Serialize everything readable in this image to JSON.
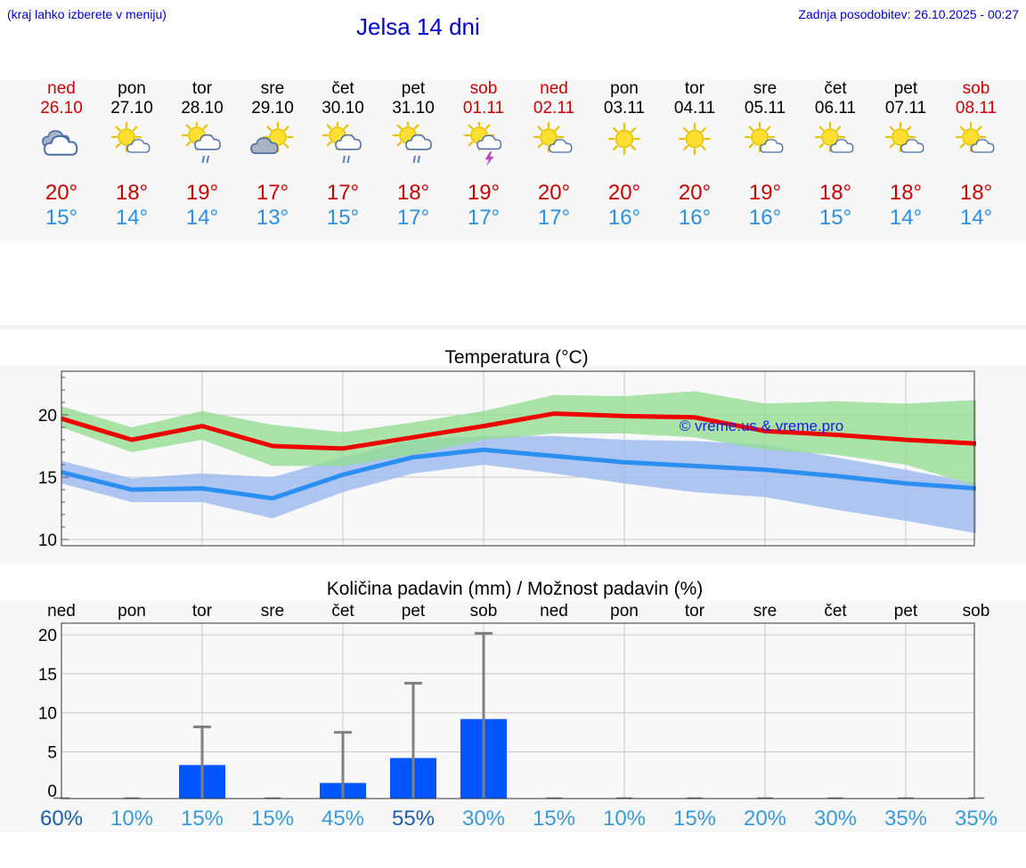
{
  "header": {
    "menu_hint": "(kraj lahko izberete v meniju)",
    "title": "Jelsa 14 dni",
    "last_update": "Zadnja posodobitev: 26.10.2025 - 00:27"
  },
  "days": [
    {
      "name": "ned",
      "date": "26.10",
      "weekend": true,
      "icon": "cloudy-icon",
      "tmax": "20°",
      "tmin": "15°"
    },
    {
      "name": "pon",
      "date": "27.10",
      "weekend": false,
      "icon": "sun-cloud-icon",
      "tmax": "18°",
      "tmin": "14°"
    },
    {
      "name": "tor",
      "date": "28.10",
      "weekend": false,
      "icon": "sun-cloud-rain-icon",
      "tmax": "19°",
      "tmin": "14°"
    },
    {
      "name": "sre",
      "date": "29.10",
      "weekend": false,
      "icon": "sun-dark-cloud-icon",
      "tmax": "17°",
      "tmin": "13°"
    },
    {
      "name": "čet",
      "date": "30.10",
      "weekend": false,
      "icon": "sun-cloud-rain-icon",
      "tmax": "17°",
      "tmin": "15°"
    },
    {
      "name": "pet",
      "date": "31.10",
      "weekend": false,
      "icon": "sun-cloud-rain-icon",
      "tmax": "18°",
      "tmin": "17°"
    },
    {
      "name": "sob",
      "date": "01.11",
      "weekend": true,
      "icon": "sun-cloud-thunder-icon",
      "tmax": "19°",
      "tmin": "17°"
    },
    {
      "name": "ned",
      "date": "02.11",
      "weekend": true,
      "icon": "sun-cloud-icon",
      "tmax": "20°",
      "tmin": "17°"
    },
    {
      "name": "pon",
      "date": "03.11",
      "weekend": false,
      "icon": "sun-icon",
      "tmax": "20°",
      "tmin": "16°"
    },
    {
      "name": "tor",
      "date": "04.11",
      "weekend": false,
      "icon": "sun-icon",
      "tmax": "20°",
      "tmin": "16°"
    },
    {
      "name": "sre",
      "date": "05.11",
      "weekend": false,
      "icon": "sun-cloud-icon",
      "tmax": "19°",
      "tmin": "16°"
    },
    {
      "name": "čet",
      "date": "06.11",
      "weekend": false,
      "icon": "sun-cloud-icon",
      "tmax": "18°",
      "tmin": "15°"
    },
    {
      "name": "pet",
      "date": "07.11",
      "weekend": false,
      "icon": "sun-cloud-icon",
      "tmax": "18°",
      "tmin": "14°"
    },
    {
      "name": "sob",
      "date": "08.11",
      "weekend": true,
      "icon": "sun-cloud-icon",
      "tmax": "18°",
      "tmin": "14°"
    }
  ],
  "colors": {
    "max_line": "#ee0000",
    "min_line": "#2a8ff0",
    "max_band": "#90dc8c",
    "min_band": "#9bb8f0",
    "bar": "#0055ff",
    "weekend": "#cc0000",
    "whisker": "#808080"
  },
  "chart_data": [
    {
      "type": "line",
      "title": "Temperatura (°C)",
      "watermark": "© vreme.us & vreme.pro",
      "x": [
        0,
        1,
        2,
        3,
        4,
        5,
        6,
        7,
        8,
        9,
        10,
        11,
        12,
        13
      ],
      "ylim": [
        9.5,
        23.5
      ],
      "yticks": [
        "10",
        "15",
        "20"
      ],
      "series": [
        {
          "name": "max",
          "values": [
            19.7,
            18.0,
            19.1,
            17.5,
            17.3,
            18.2,
            19.1,
            20.1,
            19.9,
            19.8,
            18.7,
            18.4,
            18.0,
            17.7
          ],
          "band_low": [
            19.0,
            17.0,
            18.0,
            15.9,
            15.9,
            16.8,
            18.0,
            18.5,
            18.5,
            18.2,
            17.2,
            16.8,
            16.0,
            14.3
          ],
          "band_high": [
            20.7,
            19.0,
            20.3,
            19.2,
            18.6,
            19.4,
            20.3,
            21.6,
            21.5,
            21.9,
            20.9,
            21.1,
            20.9,
            21.2
          ]
        },
        {
          "name": "min",
          "values": [
            15.4,
            14.0,
            14.1,
            13.3,
            15.2,
            16.6,
            17.2,
            16.7,
            16.2,
            15.9,
            15.6,
            15.1,
            14.5,
            14.1
          ],
          "band_low": [
            14.5,
            13.0,
            13.0,
            11.7,
            13.8,
            15.3,
            16.0,
            15.3,
            14.5,
            13.8,
            13.4,
            12.4,
            11.5,
            10.5
          ],
          "band_high": [
            16.3,
            14.9,
            15.3,
            15.0,
            16.6,
            18.0,
            18.3,
            18.3,
            18.0,
            17.9,
            17.6,
            16.6,
            15.6,
            14.5
          ]
        }
      ]
    },
    {
      "type": "bar",
      "title": "Količina padavin (mm) / Možnost padavin (%)",
      "categories": [
        "ned",
        "pon",
        "tor",
        "sre",
        "čet",
        "pet",
        "sob",
        "ned",
        "pon",
        "tor",
        "sre",
        "čet",
        "pet",
        "sob"
      ],
      "values": [
        0,
        0,
        3.3,
        0,
        1.0,
        4.2,
        9.2,
        0,
        0,
        0,
        0,
        0,
        0,
        0
      ],
      "whisker_max": [
        0,
        0,
        8.2,
        0,
        7.5,
        13.8,
        20.2,
        0,
        0,
        0,
        0,
        0,
        0,
        0
      ],
      "ylim": [
        -1,
        21.5
      ],
      "yticks": [
        "0",
        "5",
        "10",
        "15",
        "20"
      ],
      "probability": [
        "60%",
        "10%",
        "15%",
        "15%",
        "45%",
        "55%",
        "30%",
        "15%",
        "10%",
        "15%",
        "20%",
        "30%",
        "35%",
        "35%"
      ],
      "probability_dark": [
        true,
        false,
        false,
        false,
        false,
        true,
        false,
        false,
        false,
        false,
        false,
        false,
        false,
        false
      ]
    }
  ]
}
